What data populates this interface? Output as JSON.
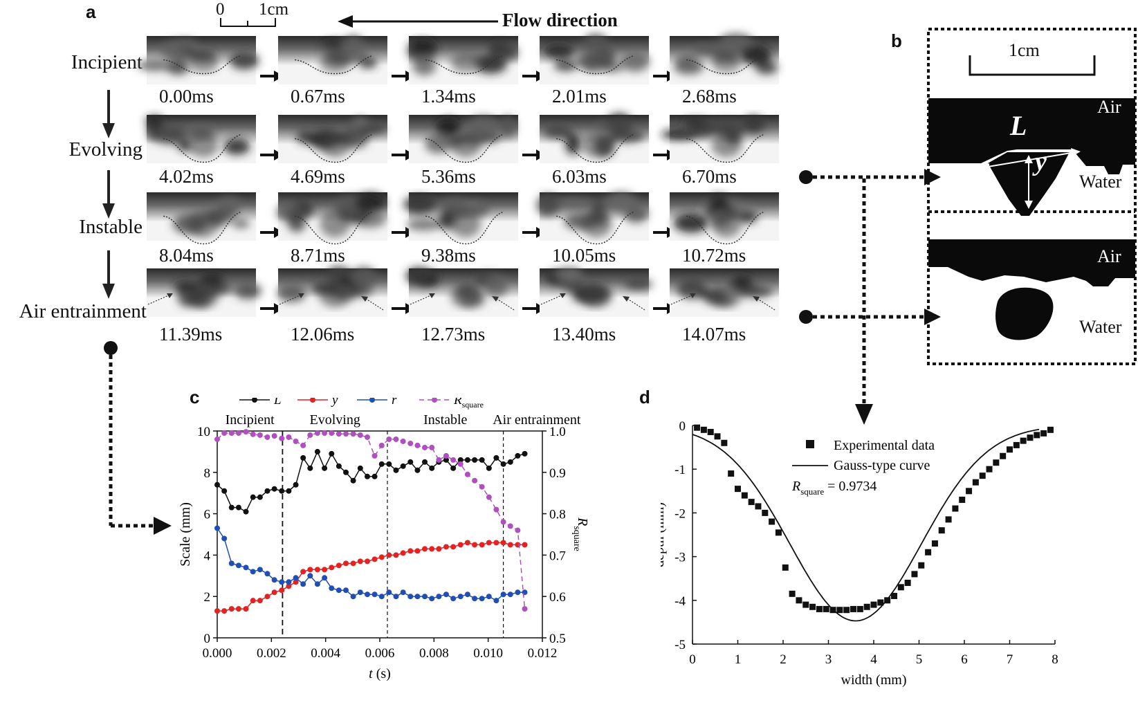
{
  "panel_a": {
    "letter": "a",
    "scale_bar": {
      "label_0": "0",
      "label_1": "1cm"
    },
    "flow_direction": "Flow direction",
    "stages": [
      "Incipient",
      "Evolving",
      "Instable",
      "Air entrainment"
    ],
    "times": [
      [
        "0.00ms",
        "0.67ms",
        "1.34ms",
        "2.01ms",
        "2.68ms"
      ],
      [
        "4.02ms",
        "4.69ms",
        "5.36ms",
        "6.03ms",
        "6.70ms"
      ],
      [
        "8.04ms",
        "8.71ms",
        "9.38ms",
        "10.05ms",
        "10.72ms"
      ],
      [
        "11.39ms",
        "12.06ms",
        "12.73ms",
        "13.40ms",
        "14.07ms"
      ]
    ]
  },
  "panel_b": {
    "letter": "b",
    "scale_label": "1cm",
    "top": {
      "air": "Air",
      "water": "Water",
      "L": "L",
      "y": "y"
    },
    "bottom": {
      "air": "Air",
      "water": "Water"
    }
  },
  "panel_c": {
    "letter": "c"
  },
  "panel_d": {
    "letter": "d"
  },
  "chart_data": [
    {
      "id": "c",
      "type": "line",
      "xlabel": "t (s)",
      "ylabel": "Scale (mm)",
      "y2label": "R",
      "y2label_sub": "square",
      "xlim": [
        0,
        0.012
      ],
      "ylim": [
        0,
        10
      ],
      "y2lim": [
        0.5,
        1.0
      ],
      "xticks": [
        "0.000",
        "0.002",
        "0.004",
        "0.006",
        "0.008",
        "0.010",
        "0.012"
      ],
      "yticks": [
        "0",
        "2",
        "4",
        "6",
        "8",
        "10"
      ],
      "y2ticks": [
        "0.5",
        "0.6",
        "0.7",
        "0.8",
        "0.9",
        "1.0"
      ],
      "phase_lines": [
        0.00241,
        0.00628,
        0.01056
      ],
      "phases": [
        "Incipient",
        "Evolving",
        "Instable",
        "Air entrainment"
      ],
      "legend": [
        "L",
        "y",
        "r",
        "R"
      ],
      "legend_sub": "square",
      "x": [
        0,
        0.00026,
        0.00053,
        0.00079,
        0.00106,
        0.00132,
        0.00158,
        0.00185,
        0.00211,
        0.00238,
        0.00264,
        0.0029,
        0.00317,
        0.00343,
        0.0037,
        0.00396,
        0.00422,
        0.00449,
        0.00475,
        0.00502,
        0.00528,
        0.00554,
        0.00581,
        0.00607,
        0.00634,
        0.0066,
        0.00686,
        0.00713,
        0.00739,
        0.00766,
        0.00792,
        0.00818,
        0.00845,
        0.00871,
        0.00898,
        0.00924,
        0.0095,
        0.00977,
        0.01003,
        0.0103,
        0.01056,
        0.01082,
        0.01109,
        0.01135
      ],
      "series": [
        {
          "name": "L",
          "axis": "left",
          "color": "#111111",
          "dash": "",
          "values": [
            7.4,
            7.1,
            6.3,
            6.3,
            6.1,
            6.8,
            6.8,
            7.1,
            7.2,
            7.1,
            7.1,
            7.4,
            8.7,
            8.2,
            9.0,
            8.2,
            8.9,
            8.3,
            8.0,
            7.6,
            8.2,
            7.8,
            7.8,
            8.4,
            8.4,
            8.1,
            8.3,
            8.5,
            8.1,
            8.5,
            8.2,
            8.5,
            8.6,
            8.2,
            8.6,
            8.6,
            8.6,
            8.6,
            8.2,
            8.7,
            8.4,
            8.5,
            8.8,
            8.9
          ]
        },
        {
          "name": "y",
          "axis": "left",
          "color": "#e32222",
          "dash": "",
          "values": [
            1.3,
            1.3,
            1.4,
            1.4,
            1.4,
            1.8,
            1.8,
            2.0,
            2.2,
            2.3,
            2.5,
            2.7,
            3.2,
            3.3,
            3.3,
            3.3,
            3.4,
            3.5,
            3.6,
            3.6,
            3.7,
            3.7,
            3.8,
            3.9,
            4.0,
            4.0,
            4.1,
            4.2,
            4.2,
            4.3,
            4.3,
            4.3,
            4.4,
            4.4,
            4.5,
            4.6,
            4.5,
            4.5,
            4.6,
            4.6,
            4.6,
            4.5,
            4.5,
            4.5
          ]
        },
        {
          "name": "r",
          "axis": "left",
          "color": "#1f4fb4",
          "dash": "",
          "values": [
            5.3,
            4.8,
            3.6,
            3.5,
            3.4,
            3.2,
            3.3,
            3.1,
            2.8,
            2.7,
            2.7,
            2.9,
            2.6,
            3.0,
            2.6,
            2.9,
            2.4,
            2.3,
            2.3,
            2.0,
            2.2,
            2.1,
            2.1,
            2.0,
            2.2,
            2.0,
            2.2,
            2.0,
            2.0,
            2.0,
            1.9,
            2.0,
            2.1,
            1.9,
            2.0,
            2.1,
            1.9,
            1.9,
            2.0,
            1.8,
            2.1,
            2.1,
            2.2,
            2.2
          ]
        },
        {
          "name": "R_square",
          "axis": "right",
          "color": "#b04fc0",
          "dash": "7,5",
          "values": [
            0.98,
            0.995,
            0.995,
            0.995,
            0.998,
            0.992,
            0.99,
            0.985,
            0.988,
            0.982,
            0.985,
            0.975,
            0.965,
            0.99,
            0.995,
            0.995,
            0.995,
            0.993,
            0.993,
            0.993,
            0.99,
            0.985,
            0.94,
            0.965,
            0.98,
            0.98,
            0.975,
            0.97,
            0.965,
            0.96,
            0.96,
            0.93,
            0.94,
            0.93,
            0.92,
            0.895,
            0.88,
            0.865,
            0.84,
            0.81,
            0.78,
            0.77,
            0.76,
            0.57
          ]
        }
      ]
    },
    {
      "id": "d",
      "type": "scatter",
      "xlabel": "width (mm)",
      "ylabel": "depth (mm)",
      "xlim": [
        0,
        8
      ],
      "ylim": [
        -5,
        0
      ],
      "xticks": [
        "0",
        "1",
        "2",
        "3",
        "4",
        "5",
        "6",
        "7",
        "8"
      ],
      "yticks": [
        "-5",
        "-4",
        "-3",
        "-2",
        "-1",
        "0"
      ],
      "legend_points": "Experimental data",
      "legend_curve": "Gauss-type curve",
      "r_label": "R",
      "r_sub": "square",
      "r_value": "= 0.9734",
      "points": {
        "x": [
          0.1,
          0.25,
          0.4,
          0.55,
          0.7,
          0.85,
          1.0,
          1.15,
          1.3,
          1.45,
          1.6,
          1.75,
          1.9,
          2.05,
          2.2,
          2.35,
          2.5,
          2.65,
          2.8,
          2.95,
          3.1,
          3.25,
          3.4,
          3.55,
          3.7,
          3.85,
          4.0,
          4.15,
          4.3,
          4.45,
          4.6,
          4.75,
          4.9,
          5.05,
          5.2,
          5.35,
          5.5,
          5.65,
          5.8,
          5.95,
          6.1,
          6.25,
          6.4,
          6.55,
          6.7,
          6.85,
          7.0,
          7.15,
          7.3,
          7.45,
          7.6,
          7.75,
          7.9
        ],
        "y": [
          -0.05,
          -0.1,
          -0.15,
          -0.25,
          -0.4,
          -1.1,
          -1.45,
          -1.6,
          -1.75,
          -1.85,
          -2.0,
          -2.2,
          -2.45,
          -3.25,
          -3.85,
          -4.0,
          -4.1,
          -4.15,
          -4.2,
          -4.2,
          -4.22,
          -4.22,
          -4.22,
          -4.2,
          -4.2,
          -4.15,
          -4.1,
          -4.05,
          -4.0,
          -3.9,
          -3.7,
          -3.6,
          -3.4,
          -3.2,
          -2.9,
          -2.7,
          -2.4,
          -2.15,
          -1.9,
          -1.7,
          -1.5,
          -1.3,
          -1.15,
          -1.0,
          -0.85,
          -0.7,
          -0.55,
          -0.45,
          -0.35,
          -0.28,
          -0.22,
          -0.18,
          -0.1
        ]
      },
      "gauss": {
        "amplitude": 4.47,
        "mu": 3.6,
        "sigma": 1.45
      }
    }
  ]
}
